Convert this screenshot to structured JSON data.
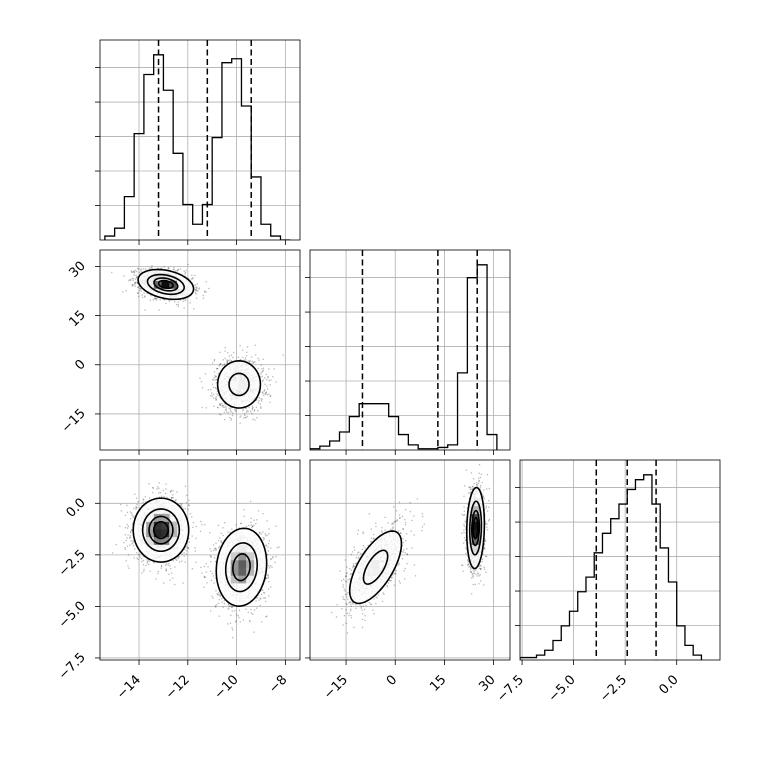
{
  "chart_data": {
    "type": "corner",
    "grid": true,
    "parameters": [
      {
        "ticks": [
          "−14",
          "−12",
          "−10",
          "−8"
        ],
        "range": [
          -15.6,
          -7.4
        ]
      },
      {
        "ticks": [
          "−15",
          "0",
          "15",
          "30"
        ],
        "range": [
          -26,
          35
        ]
      },
      {
        "ticks": [
          "−7.5",
          "−5.0",
          "−2.5",
          "0.0"
        ],
        "range": [
          -7.6,
          2.1
        ]
      }
    ],
    "histograms": [
      {
        "param": 0,
        "bin_edges": [
          -15.4,
          -15.0,
          -14.6,
          -14.2,
          -13.8,
          -13.4,
          -13.0,
          -12.6,
          -12.2,
          -11.8,
          -11.4,
          -11.0,
          -10.6,
          -10.2,
          -9.8,
          -9.4,
          -9.0,
          -8.6,
          -8.2,
          -7.8
        ],
        "counts": [
          1,
          3,
          11,
          27,
          42,
          47,
          38,
          22,
          9,
          4,
          9,
          26,
          45,
          46,
          34,
          16,
          4,
          1,
          0
        ],
        "quantiles": [
          -13.2,
          -11.2,
          -9.4
        ]
      },
      {
        "param": 1,
        "bin_edges": [
          -26,
          -23,
          -20,
          -17,
          -14,
          -11,
          -8,
          -5,
          -2,
          1,
          4,
          7,
          10,
          13,
          16,
          19,
          22,
          25,
          28,
          31
        ],
        "counts": [
          0.5,
          1.5,
          3.5,
          7,
          13,
          18,
          18,
          18,
          13,
          6,
          2,
          0.5,
          0.5,
          1,
          2,
          30,
          67,
          72,
          6
        ],
        "quantiles": [
          -10.0,
          13.0,
          25.0
        ]
      },
      {
        "param": 2,
        "bin_edges": [
          -7.6,
          -7.2,
          -6.8,
          -6.4,
          -6.0,
          -5.6,
          -5.2,
          -4.8,
          -4.4,
          -4.0,
          -3.6,
          -3.2,
          -2.8,
          -2.4,
          -2.0,
          -1.6,
          -1.2,
          -0.8,
          -0.4,
          0.0,
          0.4,
          0.8,
          1.2
        ],
        "counts": [
          0.5,
          0.5,
          1,
          2,
          4,
          7,
          10,
          14,
          17,
          22,
          26,
          29,
          32,
          35,
          37,
          38,
          32,
          23,
          16,
          7,
          3,
          1
        ],
        "quantiles": [
          -3.9,
          -2.4,
          -1.0
        ]
      }
    ],
    "pairs": [
      {
        "x": 0,
        "y": 1,
        "components": [
          {
            "center": [
              -12.9,
              24.5
            ],
            "sigma": [
              0.55,
              2.2
            ],
            "rho": -0.3,
            "peak": 1.0
          },
          {
            "center": [
              -9.9,
              -6.0
            ],
            "sigma": [
              0.5,
              4.1
            ],
            "rho": 0.0,
            "peak": 0.55
          }
        ]
      },
      {
        "x": 0,
        "y": 2,
        "components": [
          {
            "center": [
              -13.1,
              -1.3
            ],
            "sigma": [
              0.55,
              0.75
            ],
            "rho": 0.0,
            "peak": 1.0
          },
          {
            "center": [
              -9.8,
              -3.1
            ],
            "sigma": [
              0.52,
              0.95
            ],
            "rho": 0.1,
            "peak": 0.85
          }
        ]
      },
      {
        "x": 1,
        "y": 2,
        "components": [
          {
            "center": [
              -6.0,
              -3.1
            ],
            "sigma": [
              4.5,
              1.0
            ],
            "rho": 0.65,
            "peak": 0.55
          },
          {
            "center": [
              24.5,
              -1.2
            ],
            "sigma": [
              1.3,
              0.95
            ],
            "rho": 0.1,
            "peak": 1.0
          }
        ]
      }
    ],
    "contour_levels": [
      0.118,
      0.393,
      0.675,
      0.865
    ]
  }
}
